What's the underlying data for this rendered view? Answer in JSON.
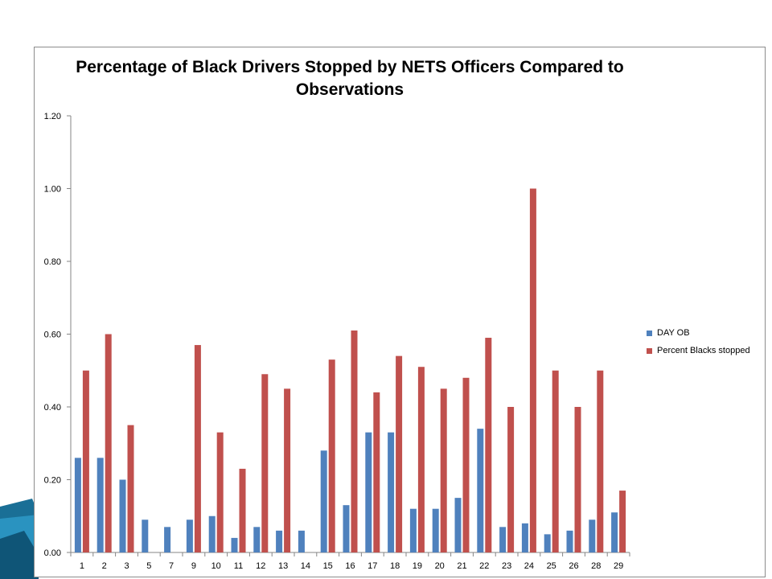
{
  "chart_data": {
    "type": "bar",
    "title": "Percentage of Black Drivers Stopped by NETS Officers Compared to Observations",
    "xlabel": "",
    "ylabel": "",
    "ylim": [
      0,
      1.2
    ],
    "y_ticks": [
      "0.00",
      "0.20",
      "0.40",
      "0.60",
      "0.80",
      "1.00",
      "1.20"
    ],
    "categories": [
      "1",
      "2",
      "3",
      "5",
      "7",
      "9",
      "10",
      "11",
      "12",
      "13",
      "14",
      "15",
      "16",
      "17",
      "18",
      "19",
      "20",
      "21",
      "22",
      "23",
      "24",
      "25",
      "26",
      "28",
      "29"
    ],
    "series": [
      {
        "name": "DAY OB",
        "color": "#4f81bd",
        "values": [
          0.26,
          0.26,
          0.2,
          0.09,
          0.07,
          0.09,
          0.1,
          0.04,
          0.07,
          0.06,
          0.06,
          0.28,
          0.13,
          0.33,
          0.33,
          0.12,
          0.12,
          0.15,
          0.34,
          0.07,
          0.08,
          0.05,
          0.06,
          0.09,
          0.11
        ]
      },
      {
        "name": "Percent Blacks stopped",
        "color": "#c0504d",
        "values": [
          0.5,
          0.6,
          0.35,
          null,
          null,
          0.57,
          0.33,
          0.23,
          0.49,
          0.45,
          null,
          0.53,
          0.61,
          0.44,
          0.54,
          0.51,
          0.45,
          0.48,
          0.59,
          0.4,
          1.0,
          0.5,
          0.4,
          0.5,
          0.17
        ]
      }
    ],
    "grid": false,
    "legend_position": "right"
  },
  "decor": {
    "corner_color": "#1e7fa8"
  }
}
